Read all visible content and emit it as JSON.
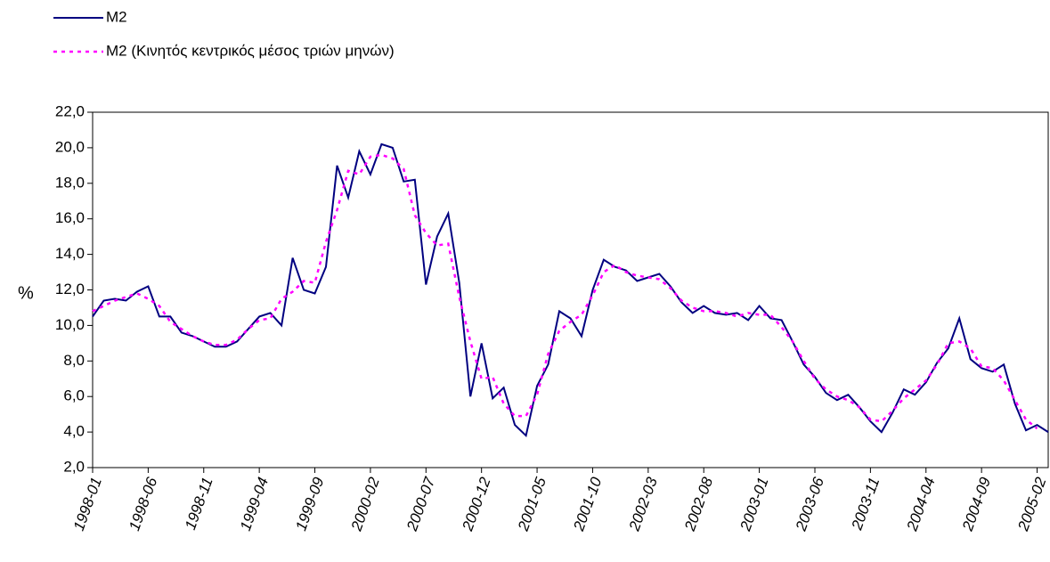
{
  "chart_data": {
    "type": "line",
    "ylabel": "%",
    "categories": [
      "1998-01",
      null,
      null,
      null,
      null,
      "1998-06",
      null,
      null,
      null,
      null,
      "1998-11",
      null,
      null,
      null,
      null,
      "1999-04",
      null,
      null,
      null,
      null,
      "1999-09",
      null,
      null,
      null,
      null,
      "2000-02",
      null,
      null,
      null,
      null,
      "2000-07",
      null,
      null,
      null,
      null,
      "2000-12",
      null,
      null,
      null,
      null,
      "2001-05",
      null,
      null,
      null,
      null,
      "2001-10",
      null,
      null,
      null,
      null,
      "2002-03",
      null,
      null,
      null,
      null,
      "2002-08",
      null,
      null,
      null,
      null,
      "2003-01",
      null,
      null,
      null,
      null,
      "2003-06",
      null,
      null,
      null,
      null,
      "2003-11",
      null,
      null,
      null,
      null,
      "2004-04",
      null,
      null,
      null,
      null,
      "2004-09",
      null,
      null,
      null,
      null,
      "2005-02",
      null
    ],
    "series": [
      {
        "name": "M2",
        "color": "#000080",
        "dash": false,
        "values": [
          10.5,
          11.4,
          11.5,
          11.4,
          11.9,
          12.2,
          10.5,
          10.5,
          9.6,
          9.4,
          9.1,
          8.8,
          8.8,
          9.1,
          9.8,
          10.5,
          10.7,
          10.0,
          13.8,
          12.0,
          11.8,
          13.3,
          19.0,
          17.2,
          19.8,
          18.5,
          20.2,
          20.0,
          18.1,
          18.2,
          12.3,
          15.0,
          16.3,
          12.4,
          6.0,
          9.0,
          5.9,
          6.5,
          4.4,
          3.8,
          6.6,
          7.8,
          10.8,
          10.4,
          9.4,
          12.0,
          13.7,
          13.3,
          13.1,
          12.5,
          12.7,
          12.9,
          12.2,
          11.3,
          10.7,
          11.1,
          10.7,
          10.6,
          10.7,
          10.3,
          11.1,
          10.4,
          10.3,
          9.1,
          7.8,
          7.1,
          6.2,
          5.8,
          6.1,
          5.4,
          4.6,
          4.0,
          5.1,
          6.4,
          6.1,
          6.8,
          7.9,
          8.7,
          10.4,
          8.1,
          7.6,
          7.4,
          7.8,
          5.6,
          4.1,
          4.4,
          4.0
        ]
      },
      {
        "name": "M2 (Κινητός κεντρικός μέσος τριών μηνών)",
        "color": "#ff00ff",
        "dash": true,
        "values": [
          10.8,
          11.1,
          11.4,
          11.6,
          11.8,
          11.5,
          11.1,
          10.2,
          9.8,
          9.4,
          9.1,
          8.9,
          8.9,
          9.2,
          9.8,
          10.3,
          10.4,
          11.5,
          11.9,
          12.5,
          12.4,
          14.7,
          16.5,
          18.7,
          18.5,
          19.5,
          19.6,
          19.4,
          18.8,
          16.2,
          15.2,
          14.5,
          14.6,
          11.6,
          9.1,
          7.0,
          7.1,
          5.6,
          4.9,
          4.9,
          6.1,
          8.4,
          9.7,
          10.2,
          10.6,
          11.7,
          13.0,
          13.4,
          13.0,
          12.8,
          12.7,
          12.6,
          12.1,
          11.4,
          11.0,
          10.8,
          10.8,
          10.7,
          10.5,
          10.7,
          10.6,
          10.6,
          9.9,
          9.1,
          8.0,
          7.0,
          6.4,
          6.0,
          5.8,
          5.4,
          4.7,
          4.6,
          5.2,
          5.9,
          6.4,
          6.9,
          7.8,
          9.0,
          9.1,
          8.7,
          7.7,
          7.6,
          6.9,
          5.8,
          4.7,
          4.2,
          null
        ]
      }
    ],
    "ylim": [
      2,
      22
    ],
    "yticks": [
      {
        "value": 2,
        "label": "2,0"
      },
      {
        "value": 4,
        "label": "4,0"
      },
      {
        "value": 6,
        "label": "6,0"
      },
      {
        "value": 8,
        "label": "8,0"
      },
      {
        "value": 10,
        "label": "10,0"
      },
      {
        "value": 12,
        "label": "12,0"
      },
      {
        "value": 14,
        "label": "14,0"
      },
      {
        "value": 16,
        "label": "16,0"
      },
      {
        "value": 18,
        "label": "18,0"
      },
      {
        "value": 20,
        "label": "20,0"
      },
      {
        "value": 22,
        "label": "22,0"
      }
    ],
    "grid": false,
    "legend": "top-left"
  }
}
